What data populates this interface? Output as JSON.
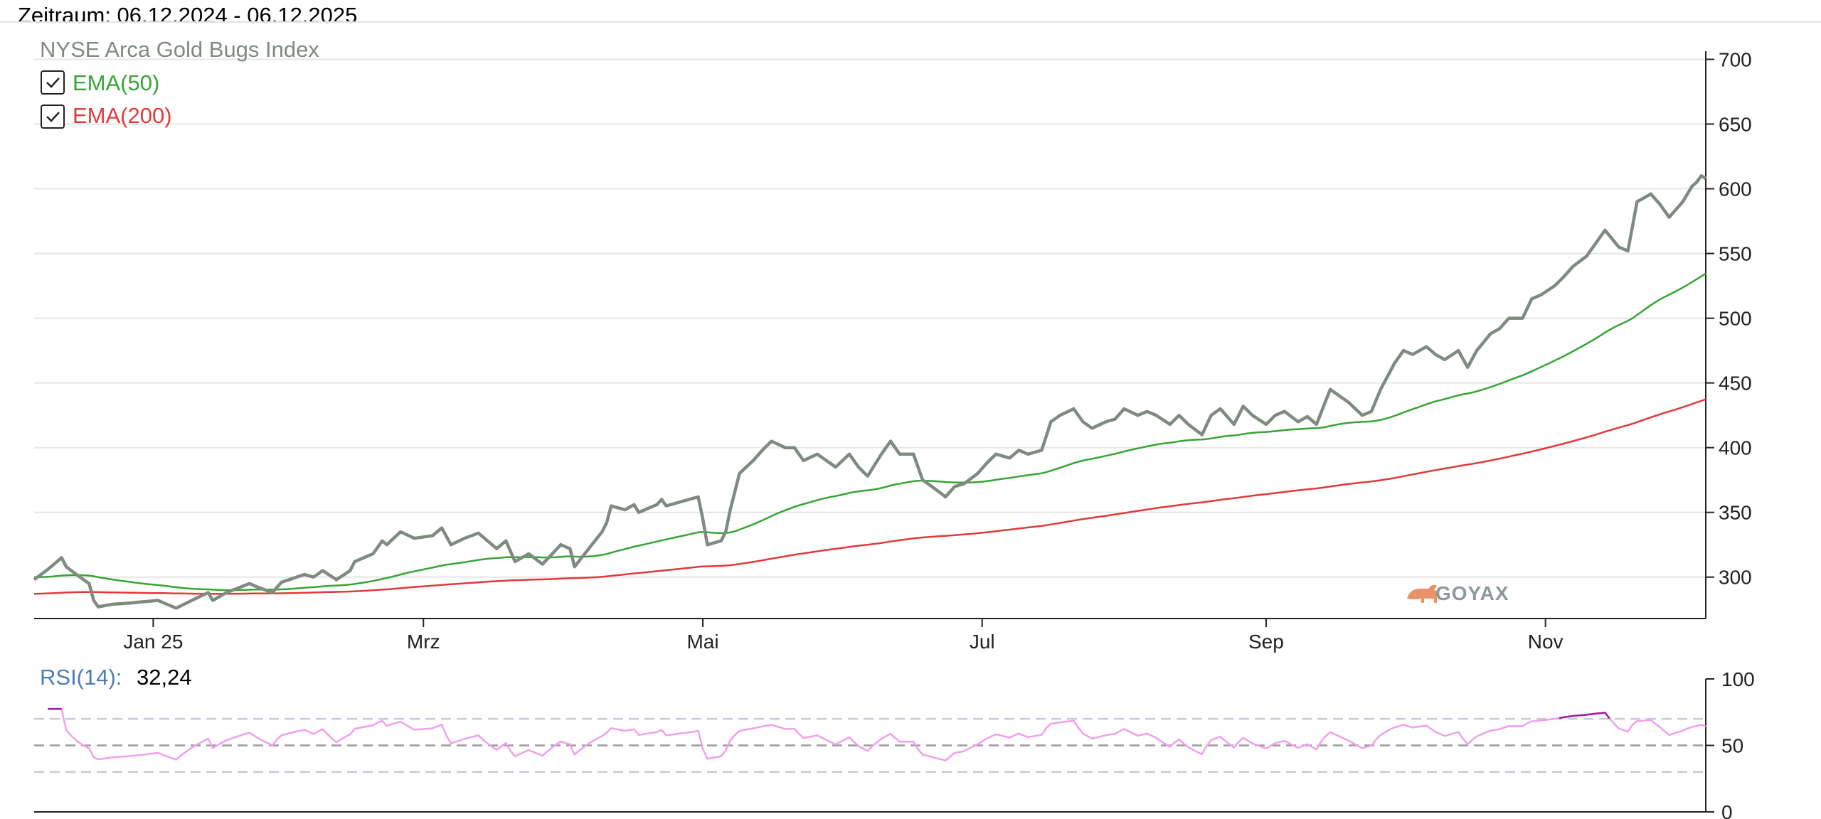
{
  "header": {
    "period": "Zeitraum: 06.12.2024 - 06.12.2025"
  },
  "brand": {
    "name": "GOYAX"
  },
  "colors": {
    "price": "#7f8a80",
    "ema50": "#36a536",
    "ema200": "#e03a3a",
    "rsi": "#f0a0ee",
    "rsi_high": "#a018a8",
    "rsi_label": "#4a7db5"
  },
  "chart_data": [
    {
      "type": "line",
      "title": "NYSE Arca Gold Bugs Index",
      "ylim": [
        268,
        703
      ],
      "yticks": [
        300,
        350,
        400,
        450,
        500,
        550,
        600,
        650,
        700
      ],
      "grid": true,
      "x_start": "2024-12-06",
      "x_end": "2025-12-06",
      "x_ticks": [
        {
          "label": "Jan 25",
          "date": "2025-01-01"
        },
        {
          "label": "Mrz",
          "date": "2025-03-01"
        },
        {
          "label": "Mai",
          "date": "2025-05-01"
        },
        {
          "label": "Jul",
          "date": "2025-07-01"
        },
        {
          "label": "Sep",
          "date": "2025-09-01"
        },
        {
          "label": "Nov",
          "date": "2025-11-01"
        }
      ],
      "legend": [
        {
          "label": "EMA(50)",
          "checked": true
        },
        {
          "label": "EMA(200)",
          "checked": true
        }
      ],
      "series": [
        {
          "name": "NYSE Arca Gold Bugs Index",
          "role": "price",
          "points": [
            [
              "2024-12-06",
              298
            ],
            [
              "2024-12-09",
              306
            ],
            [
              "2024-12-11",
              312
            ],
            [
              "2024-12-12",
              315
            ],
            [
              "2024-12-13",
              308
            ],
            [
              "2024-12-16",
              300
            ],
            [
              "2024-12-18",
              295
            ],
            [
              "2024-12-19",
              282
            ],
            [
              "2024-12-20",
              277
            ],
            [
              "2024-12-23",
              279
            ],
            [
              "2024-12-27",
              280
            ],
            [
              "2025-01-02",
              282
            ],
            [
              "2025-01-06",
              276
            ],
            [
              "2025-01-10",
              283
            ],
            [
              "2025-01-13",
              288
            ],
            [
              "2025-01-14",
              282
            ],
            [
              "2025-01-17",
              288
            ],
            [
              "2025-01-22",
              295
            ],
            [
              "2025-01-24",
              292
            ],
            [
              "2025-01-27",
              288
            ],
            [
              "2025-01-29",
              296
            ],
            [
              "2025-02-03",
              302
            ],
            [
              "2025-02-05",
              300
            ],
            [
              "2025-02-07",
              305
            ],
            [
              "2025-02-10",
              298
            ],
            [
              "2025-02-13",
              305
            ],
            [
              "2025-02-14",
              312
            ],
            [
              "2025-02-18",
              318
            ],
            [
              "2025-02-20",
              328
            ],
            [
              "2025-02-21",
              325
            ],
            [
              "2025-02-24",
              335
            ],
            [
              "2025-02-27",
              330
            ],
            [
              "2025-03-03",
              332
            ],
            [
              "2025-03-05",
              338
            ],
            [
              "2025-03-07",
              325
            ],
            [
              "2025-03-10",
              330
            ],
            [
              "2025-03-13",
              334
            ],
            [
              "2025-03-17",
              322
            ],
            [
              "2025-03-19",
              328
            ],
            [
              "2025-03-21",
              312
            ],
            [
              "2025-03-24",
              318
            ],
            [
              "2025-03-27",
              310
            ],
            [
              "2025-03-31",
              325
            ],
            [
              "2025-04-02",
              322
            ],
            [
              "2025-04-03",
              308
            ],
            [
              "2025-04-07",
              326
            ],
            [
              "2025-04-09",
              335
            ],
            [
              "2025-04-10",
              342
            ],
            [
              "2025-04-11",
              355
            ],
            [
              "2025-04-14",
              352
            ],
            [
              "2025-04-16",
              356
            ],
            [
              "2025-04-17",
              350
            ],
            [
              "2025-04-21",
              356
            ],
            [
              "2025-04-22",
              360
            ],
            [
              "2025-04-23",
              355
            ],
            [
              "2025-04-28",
              360
            ],
            [
              "2025-04-30",
              362
            ],
            [
              "2025-05-01",
              345
            ],
            [
              "2025-05-02",
              325
            ],
            [
              "2025-05-05",
              328
            ],
            [
              "2025-05-06",
              335
            ],
            [
              "2025-05-07",
              352
            ],
            [
              "2025-05-09",
              380
            ],
            [
              "2025-05-12",
              390
            ],
            [
              "2025-05-14",
              398
            ],
            [
              "2025-05-16",
              405
            ],
            [
              "2025-05-19",
              400
            ],
            [
              "2025-05-21",
              400
            ],
            [
              "2025-05-23",
              390
            ],
            [
              "2025-05-26",
              395
            ],
            [
              "2025-05-28",
              390
            ],
            [
              "2025-05-30",
              385
            ],
            [
              "2025-06-02",
              395
            ],
            [
              "2025-06-04",
              385
            ],
            [
              "2025-06-06",
              378
            ],
            [
              "2025-06-09",
              395
            ],
            [
              "2025-06-11",
              405
            ],
            [
              "2025-06-13",
              395
            ],
            [
              "2025-06-16",
              395
            ],
            [
              "2025-06-18",
              375
            ],
            [
              "2025-06-20",
              370
            ],
            [
              "2025-06-23",
              362
            ],
            [
              "2025-06-25",
              370
            ],
            [
              "2025-06-27",
              372
            ],
            [
              "2025-06-30",
              380
            ],
            [
              "2025-07-02",
              388
            ],
            [
              "2025-07-04",
              395
            ],
            [
              "2025-07-07",
              392
            ],
            [
              "2025-07-09",
              398
            ],
            [
              "2025-07-11",
              395
            ],
            [
              "2025-07-14",
              398
            ],
            [
              "2025-07-16",
              420
            ],
            [
              "2025-07-18",
              425
            ],
            [
              "2025-07-21",
              430
            ],
            [
              "2025-07-23",
              420
            ],
            [
              "2025-07-25",
              415
            ],
            [
              "2025-07-28",
              420
            ],
            [
              "2025-07-30",
              422
            ],
            [
              "2025-08-01",
              430
            ],
            [
              "2025-08-04",
              425
            ],
            [
              "2025-08-06",
              428
            ],
            [
              "2025-08-08",
              425
            ],
            [
              "2025-08-11",
              418
            ],
            [
              "2025-08-13",
              425
            ],
            [
              "2025-08-15",
              418
            ],
            [
              "2025-08-18",
              410
            ],
            [
              "2025-08-20",
              425
            ],
            [
              "2025-08-22",
              430
            ],
            [
              "2025-08-25",
              418
            ],
            [
              "2025-08-27",
              432
            ],
            [
              "2025-08-29",
              425
            ],
            [
              "2025-09-01",
              418
            ],
            [
              "2025-09-03",
              425
            ],
            [
              "2025-09-05",
              428
            ],
            [
              "2025-09-08",
              420
            ],
            [
              "2025-09-10",
              424
            ],
            [
              "2025-09-12",
              418
            ],
            [
              "2025-09-15",
              445
            ],
            [
              "2025-09-17",
              440
            ],
            [
              "2025-09-19",
              435
            ],
            [
              "2025-09-22",
              425
            ],
            [
              "2025-09-24",
              428
            ],
            [
              "2025-09-26",
              445
            ],
            [
              "2025-09-29",
              465
            ],
            [
              "2025-10-01",
              475
            ],
            [
              "2025-10-03",
              472
            ],
            [
              "2025-10-06",
              478
            ],
            [
              "2025-10-08",
              472
            ],
            [
              "2025-10-10",
              468
            ],
            [
              "2025-10-13",
              475
            ],
            [
              "2025-10-15",
              462
            ],
            [
              "2025-10-17",
              475
            ],
            [
              "2025-10-20",
              488
            ],
            [
              "2025-10-22",
              492
            ],
            [
              "2025-10-24",
              500
            ],
            [
              "2025-10-27",
              500
            ],
            [
              "2025-10-29",
              515
            ],
            [
              "2025-10-31",
              518
            ],
            [
              "2025-11-03",
              525
            ],
            [
              "2025-11-05",
              532
            ],
            [
              "2025-11-07",
              540
            ],
            [
              "2025-11-10",
              548
            ],
            [
              "2025-11-12",
              558
            ],
            [
              "2025-11-14",
              568
            ],
            [
              "2025-11-17",
              555
            ],
            [
              "2025-11-19",
              552
            ],
            [
              "2025-11-21",
              590
            ],
            [
              "2025-11-24",
              596
            ],
            [
              "2025-11-26",
              588
            ],
            [
              "2025-11-28",
              578
            ],
            [
              "2025-12-01",
              590
            ],
            [
              "2025-12-03",
              602
            ],
            [
              "2025-12-04",
              605
            ],
            [
              "2025-12-05",
              610
            ],
            [
              "2025-12-06",
              608
            ]
          ]
        },
        {
          "name": "EMA(50)",
          "role": "ema50",
          "points": []
        },
        {
          "name": "EMA(200)",
          "role": "ema200",
          "points": []
        }
      ]
    },
    {
      "type": "line",
      "title": "",
      "indicator": {
        "label": "RSI(14):",
        "value": "32,24"
      },
      "ylim": [
        0,
        100
      ],
      "yticks": [
        0,
        50,
        100
      ],
      "reference_lines": [
        30,
        50,
        70
      ],
      "series": [
        {
          "name": "RSI(14)",
          "points": []
        }
      ]
    }
  ]
}
